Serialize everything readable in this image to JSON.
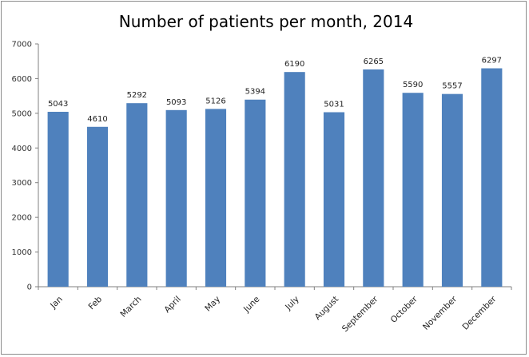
{
  "chart_data": {
    "type": "bar",
    "title": "Number of patients per month, 2014",
    "xlabel": "",
    "ylabel": "",
    "categories": [
      "Jan",
      "Feb",
      "March",
      "April",
      "May",
      "June",
      "July",
      "August",
      "September",
      "October",
      "November",
      "December"
    ],
    "values": [
      5043,
      4610,
      5292,
      5093,
      5126,
      5394,
      6190,
      5031,
      6265,
      5590,
      5557,
      6297
    ],
    "ylim": [
      0,
      7000
    ],
    "yticks": [
      0,
      1000,
      2000,
      3000,
      4000,
      5000,
      6000,
      7000
    ],
    "grid": false,
    "legend": "none",
    "bar_color": "#4F81BD",
    "data_labels": true
  }
}
